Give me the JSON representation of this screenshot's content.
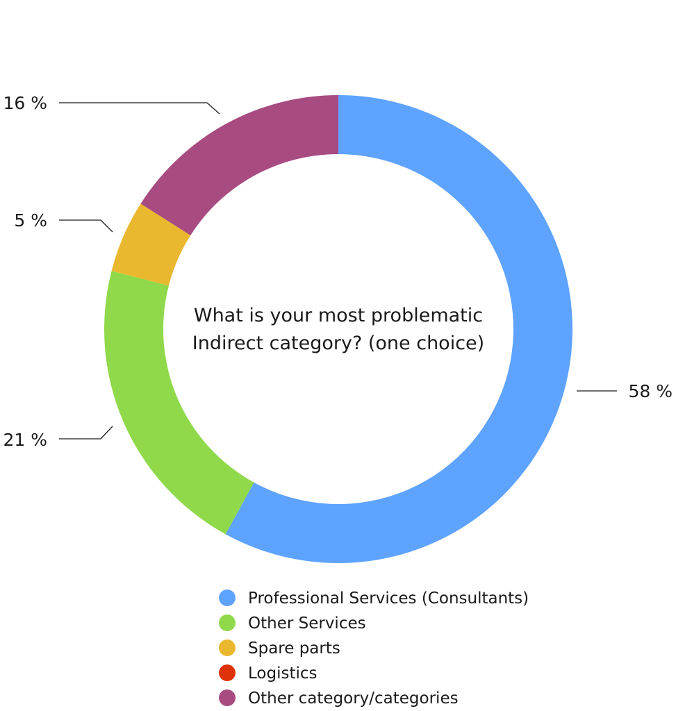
{
  "chart_data": {
    "type": "pie",
    "variant": "donut",
    "title": "What is your most problematic Indirect category? (one choice)",
    "slices": [
      {
        "name": "Professional Services (Consultants)",
        "value": 58,
        "label": "58 %",
        "color": "#5ea3ff"
      },
      {
        "name": "Other Services",
        "value": 21,
        "label": "21 %",
        "color": "#8fd94b"
      },
      {
        "name": "Spare parts",
        "value": 5,
        "label": "5 %",
        "color": "#eab82e"
      },
      {
        "name": "Logistics",
        "value": 0,
        "label": "",
        "color": "#de3308"
      },
      {
        "name": "Other category/categories",
        "value": 16,
        "label": "16 %",
        "color": "#a84b80"
      }
    ],
    "legend": {
      "position": "bottom",
      "entries": [
        "Professional Services (Consultants)",
        "Other Services",
        "Spare parts",
        "Logistics",
        "Other category/categories"
      ]
    }
  }
}
